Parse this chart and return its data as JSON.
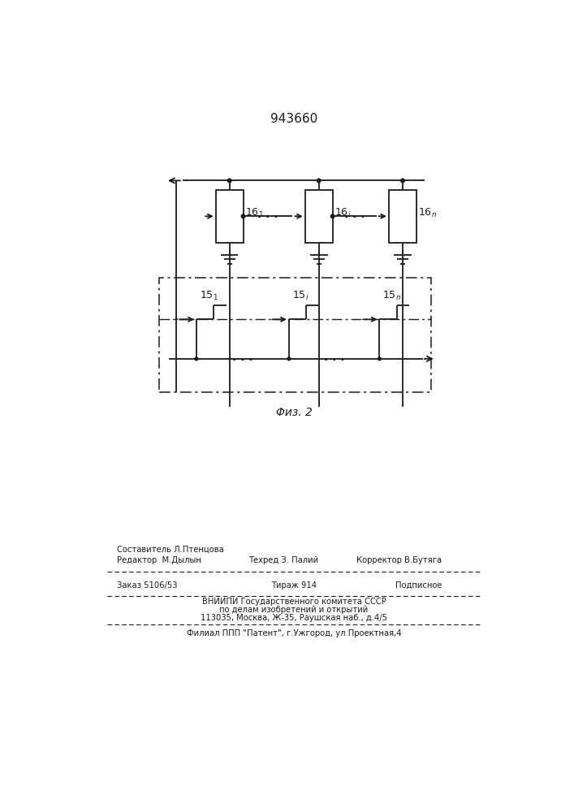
{
  "patent_number": "943660",
  "fig_label": "Φиз. 2",
  "bg_color": "#ffffff",
  "line_color": "#1a1a1a",
  "lw": 1.3,
  "editor_line": "Редактор  М.Дылын"
}
